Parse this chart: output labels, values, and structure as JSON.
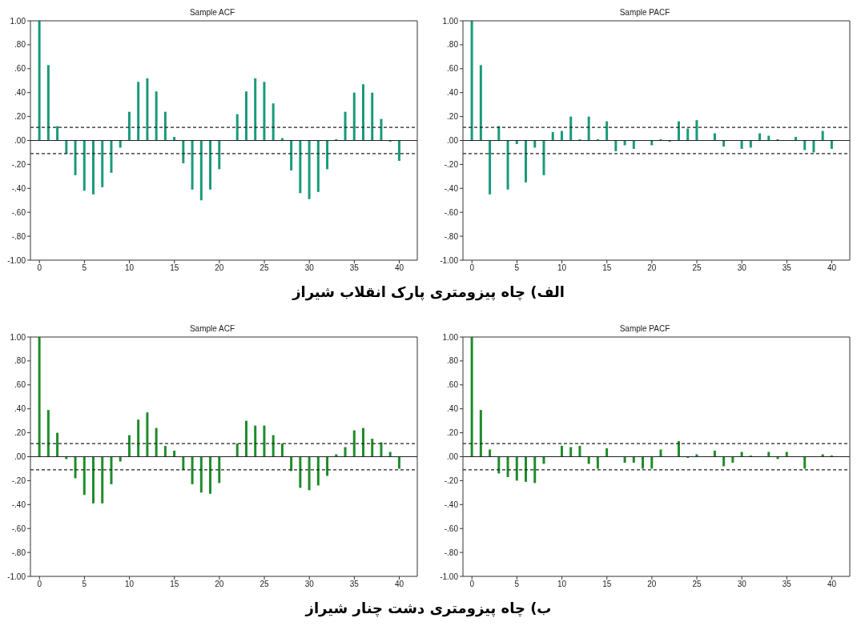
{
  "chart_data": [
    {
      "type": "bar",
      "title": "Sample ACF",
      "annotations": [
        "الف) چاه پیزومتری پارک انقلاب شیراز"
      ],
      "color": "#1a9a7a",
      "x": [
        0,
        1,
        2,
        3,
        4,
        5,
        6,
        7,
        8,
        9,
        10,
        11,
        12,
        13,
        14,
        15,
        16,
        17,
        18,
        19,
        20,
        21,
        22,
        23,
        24,
        25,
        26,
        27,
        28,
        29,
        30,
        31,
        32,
        33,
        34,
        35,
        36,
        37,
        38,
        39,
        40
      ],
      "values": [
        1.0,
        0.63,
        0.12,
        -0.11,
        -0.29,
        -0.42,
        -0.45,
        -0.39,
        -0.27,
        -0.06,
        0.24,
        0.49,
        0.52,
        0.41,
        0.24,
        0.03,
        -0.19,
        -0.41,
        -0.5,
        -0.41,
        -0.24,
        0.0,
        0.22,
        0.41,
        0.52,
        0.49,
        0.31,
        0.02,
        -0.25,
        -0.44,
        -0.49,
        -0.43,
        -0.24,
        0.01,
        0.24,
        0.4,
        0.47,
        0.4,
        0.18,
        -0.01,
        -0.17
      ],
      "xlim": [
        -1,
        42
      ],
      "xticks": [
        0,
        5,
        10,
        15,
        20,
        25,
        30,
        35,
        40
      ],
      "ylim": [
        -1,
        1
      ],
      "yticks": [
        {
          "value": -1,
          "label": "-1.00"
        },
        {
          "value": -0.8,
          "label": "-.80"
        },
        {
          "value": -0.6,
          "label": "-.60"
        },
        {
          "value": -0.4,
          "label": "-.40"
        },
        {
          "value": -0.2,
          "label": "-.20"
        },
        {
          "value": 0,
          "label": ".00"
        },
        {
          "value": 0.2,
          "label": ".20"
        },
        {
          "value": 0.4,
          "label": ".40"
        },
        {
          "value": 0.6,
          "label": ".60"
        },
        {
          "value": 0.8,
          "label": ".80"
        },
        {
          "value": 1,
          "label": "1.00"
        }
      ],
      "ref_lines": [
        {
          "axis": "y",
          "value": 0.11,
          "line_style": "dashed"
        },
        {
          "axis": "y",
          "value": -0.11,
          "line_style": "dashed"
        },
        {
          "axis": "y",
          "value": 0,
          "line_style": "solid"
        }
      ]
    },
    {
      "type": "bar",
      "title": "Sample PACF",
      "color": "#1a9a7a",
      "x": [
        0,
        1,
        2,
        3,
        4,
        5,
        6,
        7,
        8,
        9,
        10,
        11,
        12,
        13,
        14,
        15,
        16,
        17,
        18,
        19,
        20,
        21,
        22,
        23,
        24,
        25,
        26,
        27,
        28,
        29,
        30,
        31,
        32,
        33,
        34,
        35,
        36,
        37,
        38,
        39,
        40
      ],
      "values": [
        1.0,
        0.63,
        -0.45,
        0.12,
        -0.41,
        -0.03,
        -0.35,
        -0.06,
        -0.29,
        0.07,
        0.08,
        0.2,
        0.01,
        0.2,
        0.01,
        0.16,
        -0.09,
        -0.04,
        -0.07,
        0.0,
        -0.04,
        0.01,
        -0.01,
        0.16,
        0.1,
        0.17,
        0.0,
        0.06,
        -0.05,
        0.0,
        -0.07,
        -0.06,
        0.06,
        0.04,
        0.01,
        0.0,
        0.03,
        -0.08,
        -0.1,
        0.08,
        -0.07
      ],
      "xlim": [
        -1,
        42
      ],
      "xticks": [
        0,
        5,
        10,
        15,
        20,
        25,
        30,
        35,
        40
      ],
      "ylim": [
        -1,
        1
      ],
      "yticks": [
        {
          "value": -1,
          "label": "-1.00"
        },
        {
          "value": -0.8,
          "label": "-.80"
        },
        {
          "value": -0.6,
          "label": "-.60"
        },
        {
          "value": -0.4,
          "label": "-.40"
        },
        {
          "value": -0.2,
          "label": "-.20"
        },
        {
          "value": 0,
          "label": ".00"
        },
        {
          "value": 0.2,
          "label": ".20"
        },
        {
          "value": 0.4,
          "label": ".40"
        },
        {
          "value": 0.6,
          "label": ".60"
        },
        {
          "value": 0.8,
          "label": ".80"
        },
        {
          "value": 1,
          "label": "1.00"
        }
      ],
      "ref_lines": [
        {
          "axis": "y",
          "value": 0.11,
          "line_style": "dashed"
        },
        {
          "axis": "y",
          "value": -0.11,
          "line_style": "dashed"
        },
        {
          "axis": "y",
          "value": 0,
          "line_style": "solid"
        }
      ]
    },
    {
      "type": "bar",
      "title": "Sample ACF",
      "annotations": [
        "ب) چاه پیزومتری دشت چنار شیراز"
      ],
      "color": "#1e8c2a",
      "x": [
        0,
        1,
        2,
        3,
        4,
        5,
        6,
        7,
        8,
        9,
        10,
        11,
        12,
        13,
        14,
        15,
        16,
        17,
        18,
        19,
        20,
        21,
        22,
        23,
        24,
        25,
        26,
        27,
        28,
        29,
        30,
        31,
        32,
        33,
        34,
        35,
        36,
        37,
        38,
        39,
        40
      ],
      "values": [
        1.0,
        0.39,
        0.2,
        -0.02,
        -0.18,
        -0.32,
        -0.39,
        -0.39,
        -0.23,
        -0.04,
        0.18,
        0.31,
        0.37,
        0.24,
        0.09,
        0.05,
        -0.11,
        -0.23,
        -0.3,
        -0.31,
        -0.22,
        0.0,
        0.11,
        0.3,
        0.26,
        0.26,
        0.18,
        0.11,
        -0.12,
        -0.26,
        -0.28,
        -0.24,
        -0.16,
        0.02,
        0.08,
        0.22,
        0.24,
        0.15,
        0.12,
        0.04,
        -0.1
      ],
      "xlim": [
        -1,
        42
      ],
      "xticks": [
        0,
        5,
        10,
        15,
        20,
        25,
        30,
        35,
        40
      ],
      "ylim": [
        -1,
        1
      ],
      "yticks": [
        {
          "value": -1,
          "label": "-1.00"
        },
        {
          "value": -0.8,
          "label": "-.80"
        },
        {
          "value": -0.6,
          "label": "-.60"
        },
        {
          "value": -0.4,
          "label": "-.40"
        },
        {
          "value": -0.2,
          "label": "-.20"
        },
        {
          "value": 0,
          "label": ".00"
        },
        {
          "value": 0.2,
          "label": ".20"
        },
        {
          "value": 0.4,
          "label": ".40"
        },
        {
          "value": 0.6,
          "label": ".60"
        },
        {
          "value": 0.8,
          "label": ".80"
        },
        {
          "value": 1,
          "label": "1.00"
        }
      ],
      "ref_lines": [
        {
          "axis": "y",
          "value": 0.11,
          "line_style": "dashed"
        },
        {
          "axis": "y",
          "value": -0.11,
          "line_style": "dashed"
        },
        {
          "axis": "y",
          "value": 0,
          "line_style": "solid"
        }
      ]
    },
    {
      "type": "bar",
      "title": "Sample PACF",
      "color": "#1e8c2a",
      "x": [
        0,
        1,
        2,
        3,
        4,
        5,
        6,
        7,
        8,
        9,
        10,
        11,
        12,
        13,
        14,
        15,
        16,
        17,
        18,
        19,
        20,
        21,
        22,
        23,
        24,
        25,
        26,
        27,
        28,
        29,
        30,
        31,
        32,
        33,
        34,
        35,
        36,
        37,
        38,
        39,
        40
      ],
      "values": [
        1.0,
        0.39,
        0.06,
        -0.14,
        -0.17,
        -0.2,
        -0.21,
        -0.22,
        -0.06,
        0.0,
        0.09,
        0.08,
        0.09,
        -0.06,
        -0.1,
        0.07,
        0.0,
        -0.05,
        -0.05,
        -0.1,
        -0.1,
        0.06,
        0.0,
        0.13,
        -0.01,
        0.02,
        0.0,
        0.05,
        -0.08,
        -0.05,
        0.04,
        0.01,
        0.0,
        0.04,
        -0.02,
        0.04,
        0.0,
        -0.1,
        0.0,
        0.02,
        0.01
      ],
      "xlim": [
        -1,
        42
      ],
      "xticks": [
        0,
        5,
        10,
        15,
        20,
        25,
        30,
        35,
        40
      ],
      "ylim": [
        -1,
        1
      ],
      "yticks": [
        {
          "value": -1,
          "label": "-1.00"
        },
        {
          "value": -0.8,
          "label": "-.80"
        },
        {
          "value": -0.6,
          "label": "-.60"
        },
        {
          "value": -0.4,
          "label": "-.40"
        },
        {
          "value": -0.2,
          "label": "-.20"
        },
        {
          "value": 0,
          "label": ".00"
        },
        {
          "value": 0.2,
          "label": ".20"
        },
        {
          "value": 0.4,
          "label": ".40"
        },
        {
          "value": 0.6,
          "label": ".60"
        },
        {
          "value": 0.8,
          "label": ".80"
        },
        {
          "value": 1,
          "label": "1.00"
        }
      ],
      "ref_lines": [
        {
          "axis": "y",
          "value": 0.11,
          "line_style": "dashed"
        },
        {
          "axis": "y",
          "value": -0.11,
          "line_style": "dashed"
        },
        {
          "axis": "y",
          "value": 0,
          "line_style": "solid"
        }
      ]
    }
  ]
}
